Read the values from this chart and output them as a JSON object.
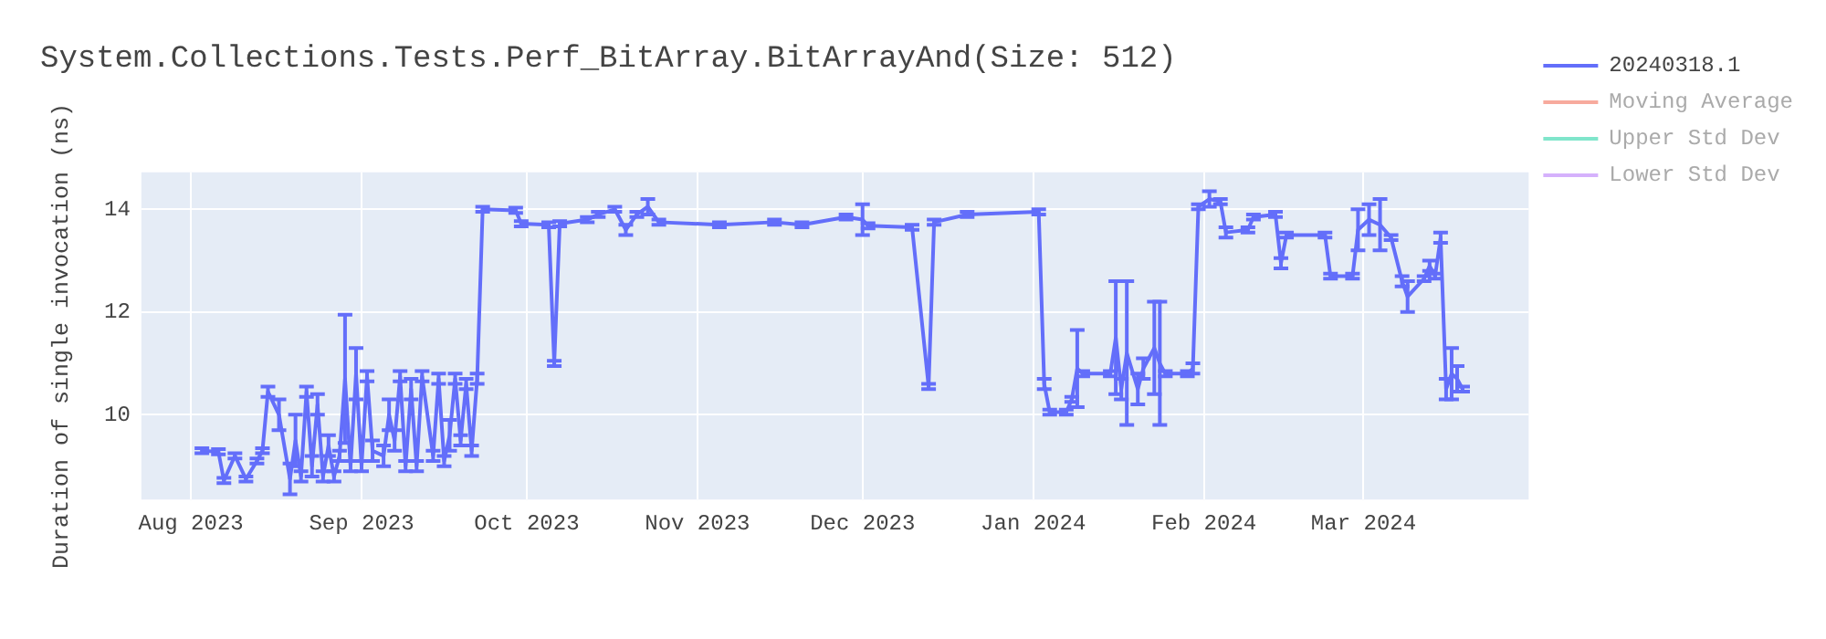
{
  "chart_data": {
    "type": "line",
    "title": "System.Collections.Tests.Perf_BitArray.BitArrayAnd(Size: 512)",
    "ylabel": "Duration of single invocation (ns)",
    "x": [
      "2023-08-03",
      "2023-08-06",
      "2023-08-07",
      "2023-08-09",
      "2023-08-11",
      "2023-08-13",
      "2023-08-14",
      "2023-08-15",
      "2023-08-17",
      "2023-08-19",
      "2023-08-20",
      "2023-08-21",
      "2023-08-22",
      "2023-08-23",
      "2023-08-24",
      "2023-08-25",
      "2023-08-26",
      "2023-08-27",
      "2023-08-28",
      "2023-08-29",
      "2023-08-30",
      "2023-08-31",
      "2023-09-01",
      "2023-09-02",
      "2023-09-03",
      "2023-09-05",
      "2023-09-06",
      "2023-09-07",
      "2023-09-08",
      "2023-09-09",
      "2023-09-10",
      "2023-09-11",
      "2023-09-12",
      "2023-09-14",
      "2023-09-15",
      "2023-09-16",
      "2023-09-17",
      "2023-09-18",
      "2023-09-19",
      "2023-09-20",
      "2023-09-21",
      "2023-09-22",
      "2023-09-23",
      "2023-09-29",
      "2023-09-30",
      "2023-10-05",
      "2023-10-06",
      "2023-10-07",
      "2023-10-12",
      "2023-10-14",
      "2023-10-17",
      "2023-10-19",
      "2023-10-21",
      "2023-10-23",
      "2023-10-25",
      "2023-11-05",
      "2023-11-15",
      "2023-11-20",
      "2023-11-28",
      "2023-12-01",
      "2023-12-02",
      "2023-12-10",
      "2023-12-13",
      "2023-12-14",
      "2023-12-20",
      "2024-01-02",
      "2024-01-03",
      "2024-01-04",
      "2024-01-07",
      "2024-01-08",
      "2024-01-09",
      "2024-01-10",
      "2024-01-15",
      "2024-01-16",
      "2024-01-17",
      "2024-01-18",
      "2024-01-20",
      "2024-01-21",
      "2024-01-23",
      "2024-01-24",
      "2024-01-25",
      "2024-01-29",
      "2024-01-30",
      "2024-01-31",
      "2024-02-02",
      "2024-02-04",
      "2024-02-05",
      "2024-02-09",
      "2024-02-10",
      "2024-02-14",
      "2024-02-15",
      "2024-02-16",
      "2024-02-23",
      "2024-02-24",
      "2024-02-28",
      "2024-02-29",
      "2024-03-02",
      "2024-03-04",
      "2024-03-06",
      "2024-03-08",
      "2024-03-09",
      "2024-03-12",
      "2024-03-13",
      "2024-03-14",
      "2024-03-15",
      "2024-03-16",
      "2024-03-17",
      "2024-03-18",
      "2024-03-19"
    ],
    "series": [
      {
        "name": "20240318.1",
        "color": "#636efa",
        "values": [
          9.3,
          9.28,
          8.72,
          9.2,
          8.75,
          9.1,
          9.3,
          10.45,
          10.0,
          8.75,
          9.5,
          8.8,
          10.45,
          9.0,
          10.2,
          8.8,
          9.4,
          8.8,
          9.2,
          10.7,
          9.0,
          10.8,
          9.0,
          10.75,
          9.3,
          9.2,
          10.0,
          9.5,
          10.75,
          9.0,
          10.5,
          9.0,
          10.75,
          9.2,
          10.7,
          9.1,
          9.6,
          10.7,
          9.5,
          10.6,
          9.3,
          10.7,
          14.0,
          13.98,
          13.72,
          13.7,
          11.0,
          13.72,
          13.8,
          13.9,
          14.0,
          13.6,
          13.9,
          14.05,
          13.75,
          13.7,
          13.75,
          13.7,
          13.85,
          13.8,
          13.68,
          13.65,
          10.55,
          13.75,
          13.9,
          13.95,
          10.6,
          10.05,
          10.05,
          10.3,
          10.9,
          10.8,
          10.8,
          11.5,
          10.5,
          11.2,
          10.5,
          10.9,
          11.3,
          11.0,
          10.8,
          10.8,
          10.9,
          14.05,
          14.2,
          14.15,
          13.55,
          13.6,
          13.85,
          13.9,
          12.95,
          13.5,
          13.5,
          12.7,
          12.7,
          13.6,
          13.8,
          13.7,
          13.45,
          12.6,
          12.3,
          12.65,
          12.9,
          12.7,
          13.45,
          10.5,
          10.8,
          10.7,
          10.5
        ],
        "errors": [
          0.05,
          0.05,
          0.05,
          0.05,
          0.05,
          0.05,
          0.05,
          0.1,
          0.3,
          0.3,
          0.5,
          0.1,
          0.1,
          0.2,
          0.2,
          0.1,
          0.2,
          0.1,
          0.1,
          1.25,
          0.1,
          0.5,
          0.1,
          0.1,
          0.2,
          0.2,
          0.3,
          0.2,
          0.1,
          0.1,
          0.2,
          0.1,
          0.1,
          0.1,
          0.1,
          0.1,
          0.3,
          0.1,
          0.1,
          0.1,
          0.1,
          0.1,
          0.05,
          0.05,
          0.05,
          0.05,
          0.05,
          0.05,
          0.05,
          0.05,
          0.05,
          0.1,
          0.05,
          0.15,
          0.05,
          0.05,
          0.05,
          0.05,
          0.05,
          0.3,
          0.05,
          0.05,
          0.05,
          0.05,
          0.05,
          0.05,
          0.1,
          0.05,
          0.05,
          0.05,
          0.75,
          0.05,
          0.05,
          1.1,
          0.2,
          1.4,
          0.3,
          0.2,
          0.9,
          1.2,
          0.05,
          0.05,
          0.1,
          0.05,
          0.15,
          0.05,
          0.1,
          0.05,
          0.05,
          0.05,
          0.1,
          0.05,
          0.05,
          0.05,
          0.05,
          0.4,
          0.3,
          0.5,
          0.05,
          0.1,
          0.3,
          0.05,
          0.1,
          0.05,
          0.1,
          0.2,
          0.5,
          0.25,
          0.05
        ]
      },
      {
        "name": "Moving Average",
        "color": "#f7aa9d",
        "values": [
          null,
          null,
          null,
          null,
          null,
          null,
          null,
          null,
          null,
          null,
          null,
          null,
          null,
          null,
          null,
          null,
          null,
          null,
          null,
          null,
          null,
          null,
          null,
          null,
          null,
          null,
          null,
          null,
          null,
          null,
          null,
          null,
          null,
          null,
          null,
          null,
          null,
          null,
          null,
          null,
          null,
          null,
          null,
          null,
          null,
          null,
          null,
          null,
          null,
          null,
          null,
          null,
          null,
          null,
          null,
          null,
          null,
          null,
          null,
          null,
          null,
          null,
          null,
          null,
          null,
          null,
          null,
          null,
          null,
          null,
          null,
          null,
          null,
          null,
          null,
          null,
          null,
          null,
          null,
          null,
          null,
          null,
          null,
          null,
          null,
          null,
          null,
          null,
          null,
          null,
          null,
          null,
          null,
          null,
          null,
          null,
          null,
          null,
          null,
          null,
          null,
          null,
          null,
          null,
          null,
          null,
          null,
          null,
          null
        ]
      },
      {
        "name": "Upper Std Dev",
        "color": "#80e5cb",
        "values": [
          null,
          null,
          null,
          null,
          null,
          null,
          null,
          null,
          null,
          null,
          null,
          null,
          null,
          null,
          null,
          null,
          null,
          null,
          null,
          null,
          null,
          null,
          null,
          null,
          null,
          null,
          null,
          null,
          null,
          null,
          null,
          null,
          null,
          null,
          null,
          null,
          null,
          null,
          null,
          null,
          null,
          null,
          null,
          null,
          null,
          null,
          null,
          null,
          null,
          null,
          null,
          null,
          null,
          null,
          null,
          null,
          null,
          null,
          null,
          null,
          null,
          null,
          null,
          null,
          null,
          null,
          null,
          null,
          null,
          null,
          null,
          null,
          null,
          null,
          null,
          null,
          null,
          null,
          null,
          null,
          null,
          null,
          null,
          null,
          null,
          null,
          null,
          null,
          null,
          null,
          null,
          null,
          null,
          null,
          null,
          null,
          null,
          null,
          null,
          null,
          null,
          null,
          null,
          null,
          null,
          null,
          null,
          null,
          null
        ]
      },
      {
        "name": "Lower Std Dev",
        "color": "#d5b1fc",
        "values": [
          null,
          null,
          null,
          null,
          null,
          null,
          null,
          null,
          null,
          null,
          null,
          null,
          null,
          null,
          null,
          null,
          null,
          null,
          null,
          null,
          null,
          null,
          null,
          null,
          null,
          null,
          null,
          null,
          null,
          null,
          null,
          null,
          null,
          null,
          null,
          null,
          null,
          null,
          null,
          null,
          null,
          null,
          null,
          null,
          null,
          null,
          null,
          null,
          null,
          null,
          null,
          null,
          null,
          null,
          null,
          null,
          null,
          null,
          null,
          null,
          null,
          null,
          null,
          null,
          null,
          null,
          null,
          null,
          null,
          null,
          null,
          null,
          null,
          null,
          null,
          null,
          null,
          null,
          null,
          null,
          null,
          null,
          null,
          null,
          null,
          null,
          null,
          null,
          null,
          null,
          null,
          null,
          null,
          null,
          null,
          null,
          null,
          null,
          null,
          null,
          null,
          null,
          null,
          null,
          null,
          null,
          null,
          null,
          null
        ]
      }
    ],
    "xlim": [
      "2023-07-23",
      "2024-03-31"
    ],
    "xticks": [
      {
        "value": "2023-08-01",
        "label": "Aug 2023"
      },
      {
        "value": "2023-09-01",
        "label": "Sep 2023"
      },
      {
        "value": "2023-10-01",
        "label": "Oct 2023"
      },
      {
        "value": "2023-11-01",
        "label": "Nov 2023"
      },
      {
        "value": "2023-12-01",
        "label": "Dec 2023"
      },
      {
        "value": "2024-01-01",
        "label": "Jan 2024"
      },
      {
        "value": "2024-02-01",
        "label": "Feb 2024"
      },
      {
        "value": "2024-03-01",
        "label": "Mar 2024"
      }
    ],
    "ylim": [
      8.35,
      14.72
    ],
    "yticks": [
      10,
      12,
      14
    ],
    "grid": true,
    "legend": "right",
    "marker": "none",
    "line_style": "solid"
  }
}
